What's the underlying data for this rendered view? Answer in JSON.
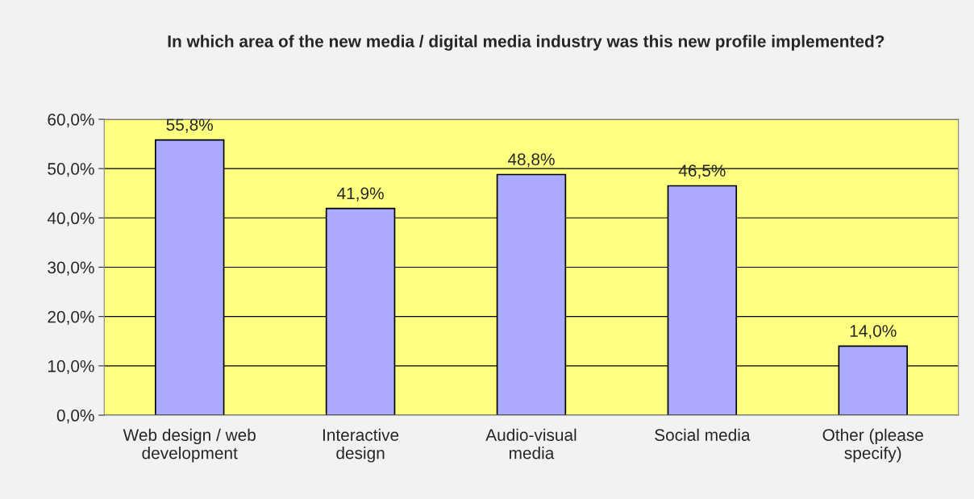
{
  "chart_data": {
    "type": "bar",
    "title": "In which area of the new media / digital media industry was this new profile implemented?",
    "categories": [
      "Web design / web development",
      "Interactive design",
      "Audio-visual media",
      "Social media",
      "Other (please specify)"
    ],
    "values": [
      55.8,
      41.9,
      48.8,
      46.5,
      14.0
    ],
    "value_labels": [
      "55,8%",
      "41,9%",
      "48,8%",
      "46,5%",
      "14,0%"
    ],
    "color": "#aaaaff",
    "ylim": [
      0,
      60
    ],
    "yticks": [
      {
        "value": 0,
        "label": "0,0%"
      },
      {
        "value": 10,
        "label": "10,0%"
      },
      {
        "value": 20,
        "label": "20,0%"
      },
      {
        "value": 30,
        "label": "30,0%"
      },
      {
        "value": 40,
        "label": "40,0%"
      },
      {
        "value": 50,
        "label": "50,0%"
      },
      {
        "value": 60,
        "label": "60,0%"
      }
    ],
    "grid": "y",
    "legend": false
  }
}
